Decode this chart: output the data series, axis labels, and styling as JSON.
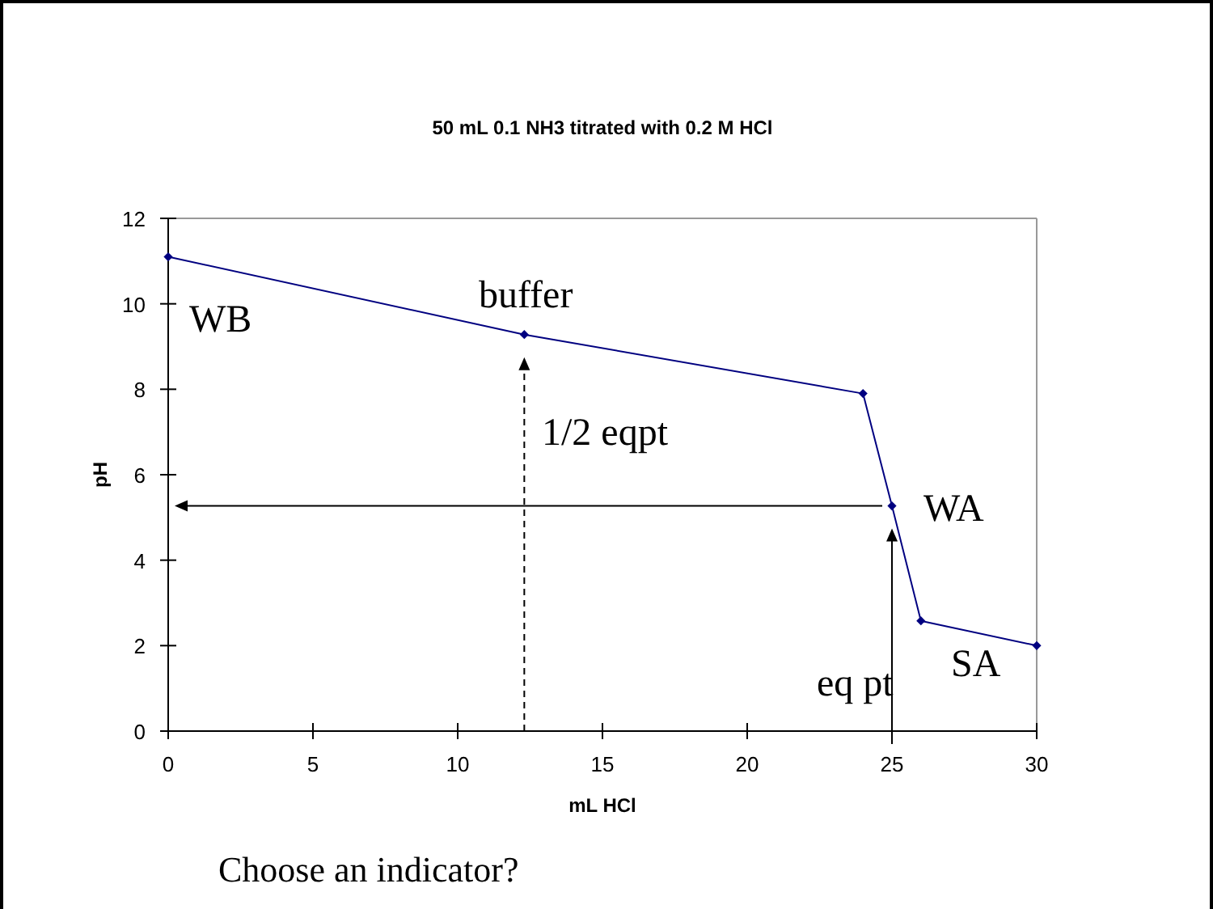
{
  "chart_data": {
    "type": "line",
    "title": "50 mL 0.1 NH3 titrated with 0.2 M HCl",
    "xlabel": "mL HCl",
    "ylabel": "pH",
    "x": [
      0,
      12.3,
      24,
      25,
      26,
      30
    ],
    "series": [
      {
        "color": "#000080",
        "values": [
          11.1,
          9.28,
          7.9,
          5.27,
          2.58,
          2.0
        ]
      }
    ],
    "xlim": [
      0,
      30
    ],
    "xticks": [
      0,
      5,
      10,
      15,
      20,
      25,
      30
    ],
    "ylim": [
      0,
      12
    ],
    "yticks": [
      0,
      2,
      4,
      6,
      8,
      10,
      12
    ],
    "grid": false,
    "marker": "diamond",
    "line_style": "solid",
    "ref_lines": [
      {
        "axis": "x",
        "value": 12.3,
        "line_style": "dashed",
        "color": "#000000"
      },
      {
        "axis": "y",
        "value": 5.27,
        "line_style": "solid",
        "color": "#000000"
      },
      {
        "axis": "x",
        "value": 25,
        "line_style": "solid",
        "color": "#000000"
      }
    ],
    "annotations": [
      "WB",
      "buffer",
      "1/2 eqpt",
      "WA",
      "eq pt",
      "SA",
      "Choose an indicator?"
    ]
  }
}
